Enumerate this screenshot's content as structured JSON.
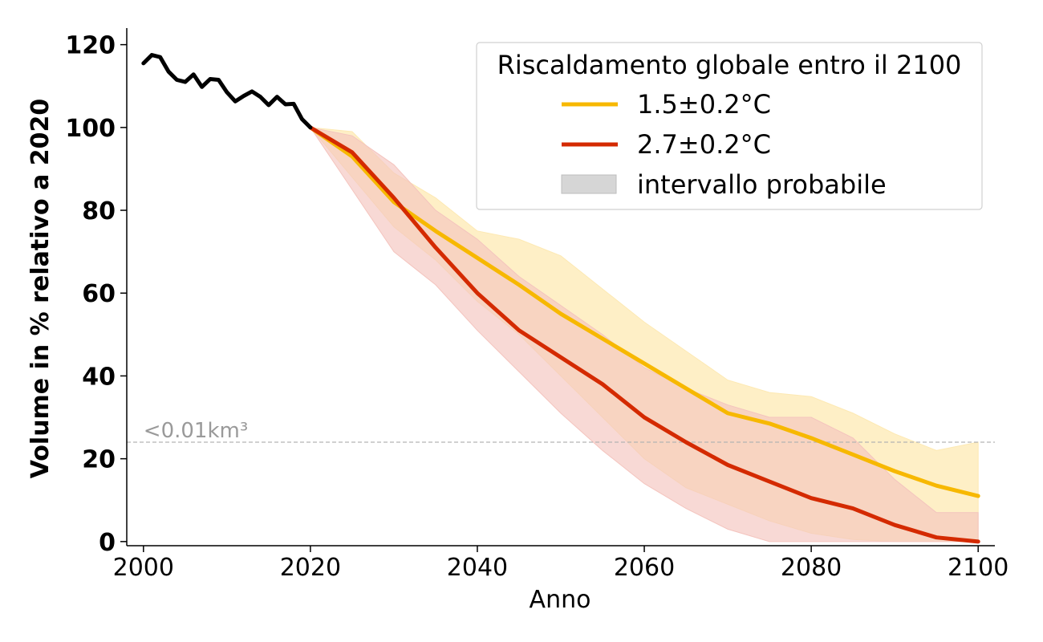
{
  "chart_data": {
    "type": "line",
    "xlabel": "Anno",
    "ylabel": "Volume in % relativo a 2020",
    "xlim": [
      1998,
      2102
    ],
    "ylim": [
      -1,
      124
    ],
    "xticks": [
      2000,
      2020,
      2040,
      2060,
      2080,
      2100
    ],
    "yticks": [
      0,
      20,
      40,
      60,
      80,
      100,
      120
    ],
    "grid": false,
    "legend": {
      "title": "Riscaldamento globale entro il 2100",
      "placement": "top-right",
      "entries": [
        {
          "label": "1.5±0.2°C",
          "color": "#f7b800",
          "kind": "line"
        },
        {
          "label": "2.7±0.2°C",
          "color": "#d42a00",
          "kind": "line"
        },
        {
          "label": "intervallo probabile",
          "color": "#d6d6d6",
          "kind": "band"
        }
      ]
    },
    "annotation": {
      "text": "<0.01km³",
      "y": 24,
      "x": 2000
    },
    "reference_line": {
      "y": 24,
      "color": "#b3b3b3",
      "style": "dashed"
    },
    "historical": {
      "color": "#000000",
      "x": [
        2000,
        2001,
        2002,
        2003,
        2004,
        2005,
        2006,
        2007,
        2008,
        2009,
        2010,
        2011,
        2012,
        2013,
        2014,
        2015,
        2016,
        2017,
        2018,
        2019,
        2020
      ],
      "y": [
        115.5,
        117.5,
        117,
        113.5,
        111.5,
        111,
        112.8,
        109.8,
        111.7,
        111.5,
        108.5,
        106.3,
        107.6,
        108.7,
        107.4,
        105.4,
        107.4,
        105.6,
        105.7,
        102,
        100
      ]
    },
    "series": [
      {
        "name": "1.5±0.2°C",
        "color": "#f7b800",
        "band_color": "#fde9b3",
        "x": [
          2020,
          2025,
          2030,
          2035,
          2040,
          2045,
          2050,
          2055,
          2060,
          2065,
          2070,
          2075,
          2080,
          2085,
          2090,
          2095,
          2100
        ],
        "y": [
          100,
          93,
          82,
          75,
          68.5,
          62,
          55,
          49,
          43,
          37,
          31,
          28.5,
          25,
          21,
          17,
          13.5,
          11
        ],
        "lower": [
          100,
          88,
          76,
          68,
          58,
          50,
          40,
          30,
          20,
          13,
          9,
          5,
          2,
          0.5,
          0,
          0,
          0
        ],
        "upper": [
          100,
          99,
          89,
          83,
          75,
          73,
          69,
          61,
          53,
          46,
          39,
          36,
          35,
          31,
          26,
          22,
          24
        ]
      },
      {
        "name": "2.7±0.2°C",
        "color": "#d42a00",
        "band_color": "#f4c4be",
        "x": [
          2020,
          2025,
          2030,
          2035,
          2040,
          2045,
          2050,
          2055,
          2060,
          2065,
          2070,
          2075,
          2080,
          2085,
          2090,
          2095,
          2100
        ],
        "y": [
          100,
          94,
          83,
          71,
          60,
          51,
          44.5,
          38,
          30,
          24,
          18.5,
          14.5,
          10.5,
          8,
          4,
          1,
          0
        ],
        "lower": [
          100,
          85,
          70,
          62,
          51,
          41,
          31,
          22,
          14,
          8,
          3,
          0,
          0,
          0,
          0,
          0,
          0
        ],
        "upper": [
          100,
          98,
          91,
          80,
          73,
          64,
          57,
          50,
          42,
          37,
          33,
          30,
          30,
          25,
          15,
          7,
          7
        ]
      }
    ]
  }
}
